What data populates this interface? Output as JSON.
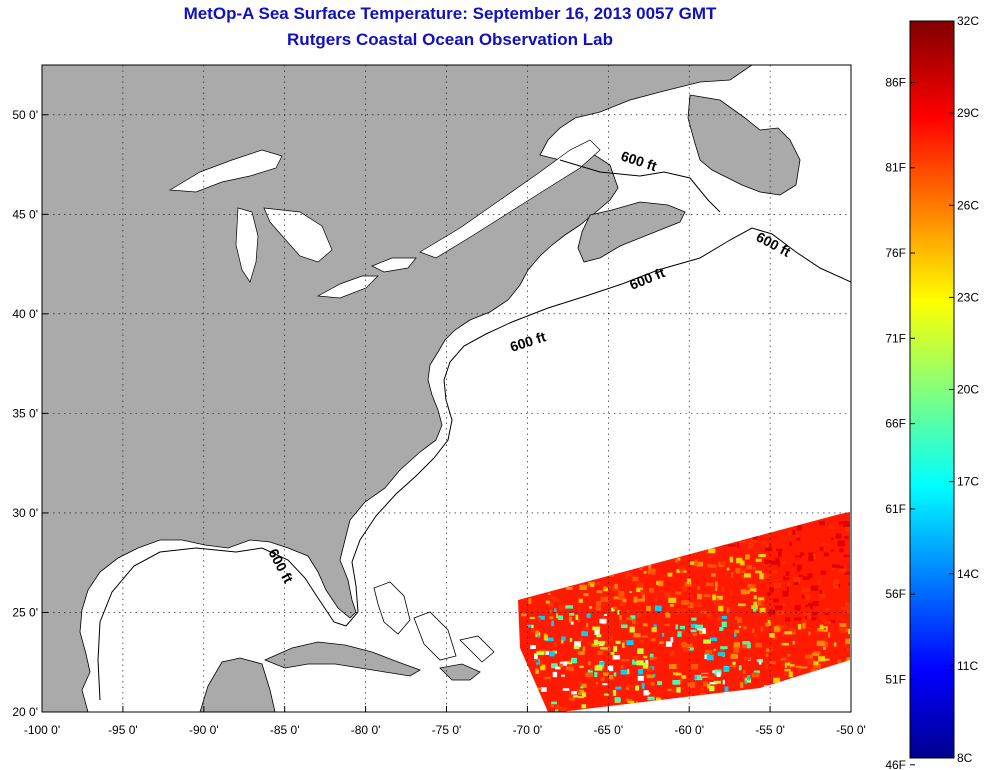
{
  "header": {
    "title": "MetOp-A Sea Surface Temperature:  September 16, 2013 0057 GMT",
    "subtitle": "Rutgers Coastal Ocean Observation Lab"
  },
  "map": {
    "lon_range": [
      -100,
      -50
    ],
    "lat_range": [
      20,
      52.5
    ],
    "lon_ticks": [
      {
        "value": -100,
        "label": "-100 0'"
      },
      {
        "value": -95,
        "label": "-95 0'"
      },
      {
        "value": -90,
        "label": "-90 0'"
      },
      {
        "value": -85,
        "label": "-85 0'"
      },
      {
        "value": -80,
        "label": "-80 0'"
      },
      {
        "value": -75,
        "label": "-75 0'"
      },
      {
        "value": -70,
        "label": "-70 0'"
      },
      {
        "value": -65,
        "label": "-65 0'"
      },
      {
        "value": -60,
        "label": "-60 0'"
      },
      {
        "value": -55,
        "label": "-55 0'"
      },
      {
        "value": -50,
        "label": "-50 0'"
      }
    ],
    "lat_ticks": [
      {
        "value": 20,
        "label": "20 0'"
      },
      {
        "value": 25,
        "label": "25 0'"
      },
      {
        "value": 30,
        "label": "30 0'"
      },
      {
        "value": 35,
        "label": "35 0'"
      },
      {
        "value": 40,
        "label": "40 0'"
      },
      {
        "value": 45,
        "label": "45 0'"
      },
      {
        "value": 50,
        "label": "50 0'"
      }
    ],
    "grid": "dotted",
    "land_color": "#aaaaaa",
    "water_color": "#ffffff",
    "isobath_labels": [
      "600 ft",
      "600 ft",
      "600 ft",
      "600 ft",
      "600 ft"
    ]
  },
  "colorbar": {
    "min_c": 8,
    "max_c": 32,
    "celsius_labels": [
      "32C",
      "29C",
      "26C",
      "23C",
      "20C",
      "17C",
      "14C",
      "11C",
      "8C"
    ],
    "fahrenheit_labels": [
      "86F",
      "81F",
      "76F",
      "71F",
      "66F",
      "61F",
      "56F",
      "51F",
      "46F"
    ],
    "colormap": "jet"
  }
}
